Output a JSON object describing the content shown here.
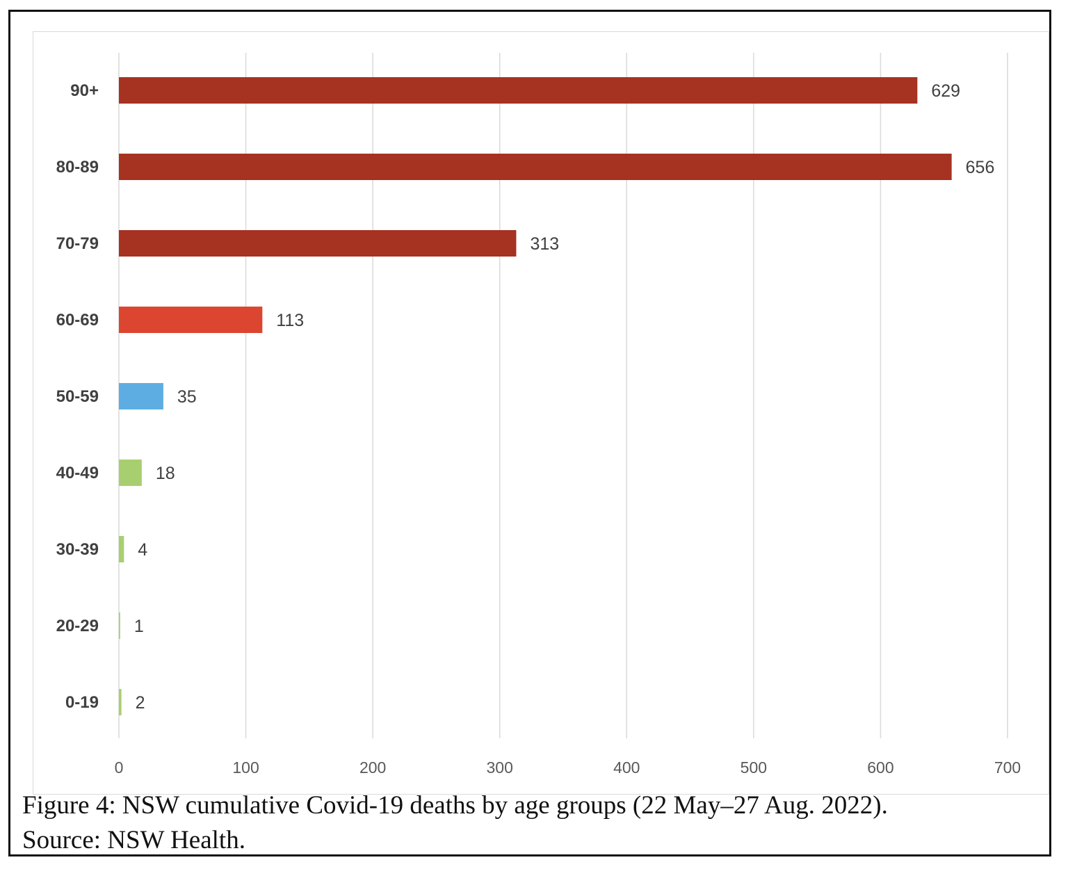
{
  "chart_data": {
    "type": "bar",
    "orientation": "horizontal",
    "categories": [
      "90+",
      "80-89",
      "70-79",
      "60-69",
      "50-59",
      "40-49",
      "30-39",
      "20-29",
      "0-19"
    ],
    "values": [
      629,
      656,
      313,
      113,
      35,
      18,
      4,
      1,
      2
    ],
    "colors": [
      "#A63222",
      "#A63222",
      "#A63222",
      "#DC4530",
      "#5DADE2",
      "#A8CF6F",
      "#A8CF6F",
      "#A8CF6F",
      "#A8CF6F"
    ],
    "xlim": [
      0,
      700
    ],
    "xticks": [
      0,
      100,
      200,
      300,
      400,
      500,
      600,
      700
    ],
    "grid": true,
    "legend": "none",
    "title": "",
    "xlabel": "",
    "ylabel": ""
  },
  "caption": {
    "line1": "Figure 4: NSW cumulative Covid-19 deaths by age groups (22 May–27 Aug. 2022).",
    "line2": "Source: NSW Health."
  }
}
